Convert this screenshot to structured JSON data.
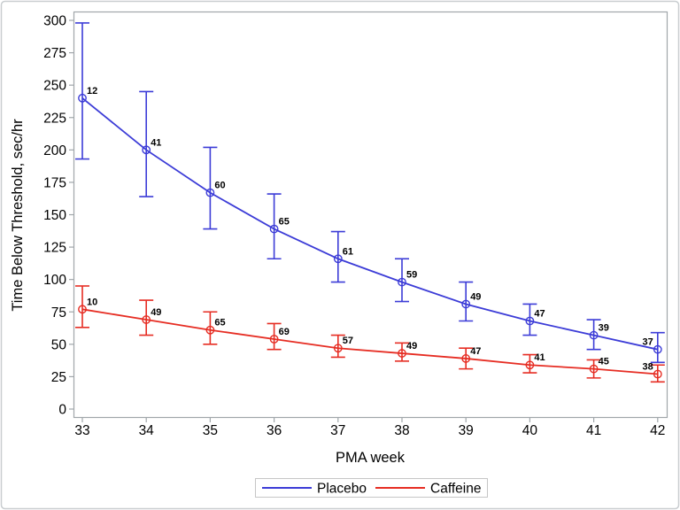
{
  "chart_data": {
    "type": "line",
    "title": "",
    "xlabel": "PMA week",
    "ylabel": "Time Below Threshold, sec/hr",
    "x": [
      33,
      34,
      35,
      36,
      37,
      38,
      39,
      40,
      41,
      42
    ],
    "xlim": [
      33,
      42
    ],
    "ylim": [
      0,
      300
    ],
    "yticks": [
      0,
      25,
      50,
      75,
      100,
      125,
      150,
      175,
      200,
      225,
      250,
      275,
      300
    ],
    "grid": false,
    "error_bars": true,
    "marker": "open-circle",
    "legend_position": "bottom-center",
    "colors": {
      "axis": "#a0a6aa",
      "border": "#c9cdd0",
      "legend_border": "#c6c6c6",
      "text": "#000000"
    },
    "series": [
      {
        "name": "Placebo",
        "color": "#3c3cd7",
        "values": [
          240,
          200,
          167,
          139,
          116,
          98,
          81,
          68,
          57,
          46
        ],
        "ci_low": [
          193,
          164,
          139,
          116,
          98,
          83,
          68,
          57,
          46,
          36
        ],
        "ci_high": [
          298,
          245,
          202,
          166,
          137,
          116,
          98,
          81,
          69,
          59
        ],
        "point_labels": [
          "12",
          "41",
          "60",
          "65",
          "61",
          "59",
          "49",
          "47",
          "39",
          "37"
        ]
      },
      {
        "name": "Caffeine",
        "color": "#e62d23",
        "values": [
          77,
          69,
          61,
          54,
          47,
          43,
          39,
          34,
          31,
          27
        ],
        "ci_low": [
          63,
          57,
          50,
          46,
          40,
          37,
          31,
          28,
          24,
          21
        ],
        "ci_high": [
          95,
          84,
          75,
          66,
          57,
          51,
          47,
          42,
          38,
          34
        ],
        "point_labels": [
          "10",
          "49",
          "65",
          "69",
          "57",
          "49",
          "47",
          "41",
          "45",
          "38"
        ]
      }
    ]
  }
}
